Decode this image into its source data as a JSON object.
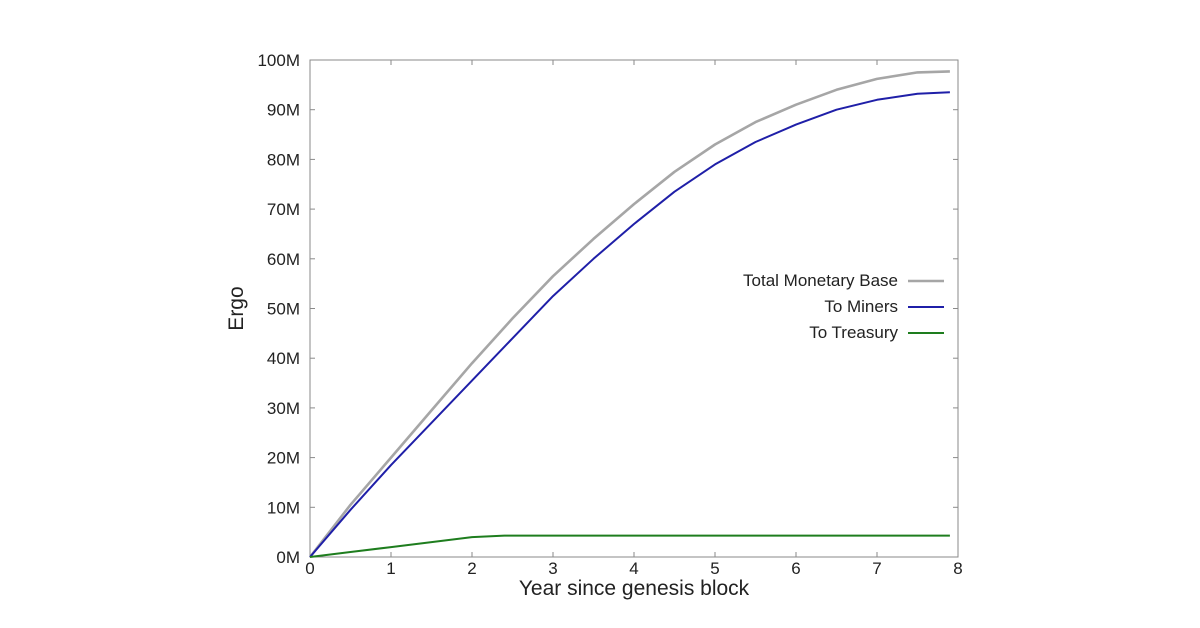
{
  "chart_data": {
    "type": "line",
    "title": "",
    "xlabel": "Year since genesis block",
    "ylabel": "Ergo",
    "xlim": [
      0,
      8
    ],
    "ylim": [
      0,
      100000000
    ],
    "x_ticks": [
      "0",
      "1",
      "2",
      "3",
      "4",
      "5",
      "6",
      "7",
      "8"
    ],
    "y_ticks": [
      "0M",
      "10M",
      "20M",
      "30M",
      "40M",
      "50M",
      "60M",
      "70M",
      "80M",
      "90M",
      "100M"
    ],
    "grid": false,
    "legend_position": "center-right",
    "series": [
      {
        "name": "Total Monetary Base",
        "color": "#a6a6a6",
        "x": [
          0,
          0.5,
          1,
          1.5,
          2,
          2.5,
          3,
          3.5,
          4,
          4.5,
          5,
          5.5,
          6,
          6.5,
          7,
          7.5,
          7.9
        ],
        "y": [
          0,
          10500000,
          20000000,
          29500000,
          39000000,
          48000000,
          56500000,
          64000000,
          71000000,
          77500000,
          83000000,
          87500000,
          91000000,
          94000000,
          96200000,
          97500000,
          97700000
        ]
      },
      {
        "name": "To Miners",
        "color": "#1f1fa8",
        "x": [
          0,
          0.5,
          1,
          1.5,
          2,
          2.5,
          3,
          3.5,
          4,
          4.5,
          5,
          5.5,
          6,
          6.5,
          7,
          7.5,
          7.9
        ],
        "y": [
          0,
          9500000,
          18500000,
          27000000,
          35500000,
          44000000,
          52500000,
          60000000,
          67000000,
          73500000,
          79000000,
          83500000,
          87000000,
          90000000,
          92000000,
          93200000,
          93500000
        ]
      },
      {
        "name": "To Treasury",
        "color": "#1e7d1e",
        "x": [
          0,
          0.5,
          1,
          1.5,
          2,
          2.4,
          3,
          4,
          5,
          6,
          7,
          7.9
        ],
        "y": [
          0,
          1000000,
          2000000,
          3000000,
          4000000,
          4300000,
          4300000,
          4300000,
          4300000,
          4300000,
          4300000,
          4300000
        ]
      }
    ]
  }
}
